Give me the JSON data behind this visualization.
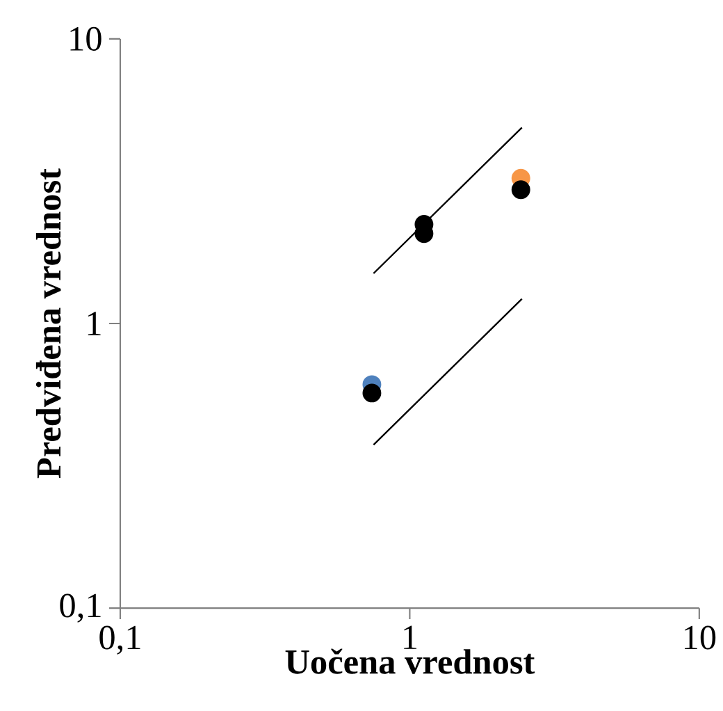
{
  "chart_data": {
    "type": "scatter",
    "xlabel": "Uočena vrednost",
    "ylabel": "Predviđena vrednost",
    "log": "xy",
    "xlim": [
      0.1,
      10
    ],
    "ylim": [
      0.1,
      10
    ],
    "xticks": [
      {
        "value": 0.1,
        "label": "0,1"
      },
      1,
      10
    ],
    "yticks": [
      {
        "value": 0.1,
        "label": "0,1"
      },
      1,
      10
    ],
    "series": [
      {
        "type": "line",
        "color": "#000000",
        "line_style": "solid",
        "marker": "none",
        "x": [
          0.75,
          2.44
        ],
        "values": [
          1.5,
          4.88
        ]
      },
      {
        "type": "line",
        "color": "#000000",
        "line_style": "solid",
        "marker": "none",
        "x": [
          0.75,
          2.44
        ],
        "values": [
          0.375,
          1.22
        ]
      },
      {
        "color": "#4f81bd",
        "marker": "circle",
        "x": [
          0.74
        ],
        "values": [
          0.61
        ]
      },
      {
        "color": "#f79646",
        "marker": "circle",
        "x": [
          2.42
        ],
        "values": [
          3.24
        ]
      },
      {
        "color": "#000000",
        "marker": "circle",
        "x": [
          0.74,
          1.12,
          1.12,
          2.42
        ],
        "values": [
          0.57,
          2.23,
          2.07,
          2.95
        ]
      }
    ]
  }
}
